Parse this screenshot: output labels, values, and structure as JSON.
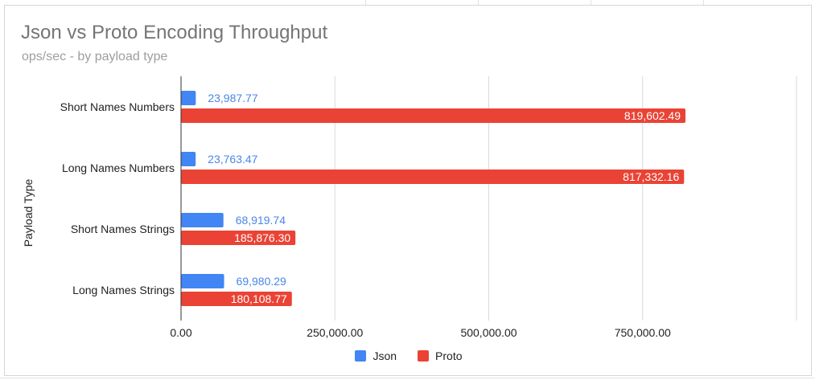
{
  "chart_data": {
    "type": "bar",
    "orientation": "horizontal",
    "title": "Json vs Proto Encoding Throughput",
    "subtitle": "ops/sec - by payload type",
    "xlabel": "",
    "ylabel": "Payload Type",
    "categories": [
      "Short Names Numbers",
      "Long Names Numbers",
      "Short Names Strings",
      "Long Names Strings"
    ],
    "series": [
      {
        "name": "Json",
        "color": "#4285f4",
        "label_color": "#4a86e8",
        "values": [
          23987.77,
          23763.47,
          68919.74,
          69980.29
        ],
        "labels": [
          "23,987.77",
          "23,763.47",
          "68,919.74",
          "69,980.29"
        ]
      },
      {
        "name": "Proto",
        "color": "#ea4335",
        "label_color": "#ffffff",
        "values": [
          819602.49,
          817332.16,
          185876.3,
          180108.77
        ],
        "labels": [
          "819,602.49",
          "817,332.16",
          "185,876.30",
          "180,108.77"
        ]
      }
    ],
    "xlim": [
      0,
      1000000
    ],
    "xticks": [
      0,
      250000,
      500000,
      750000
    ],
    "xtick_labels": [
      "0.00",
      "250,000.00",
      "500,000.00",
      "750,000.00"
    ],
    "grid": true,
    "legend_position": "bottom"
  }
}
